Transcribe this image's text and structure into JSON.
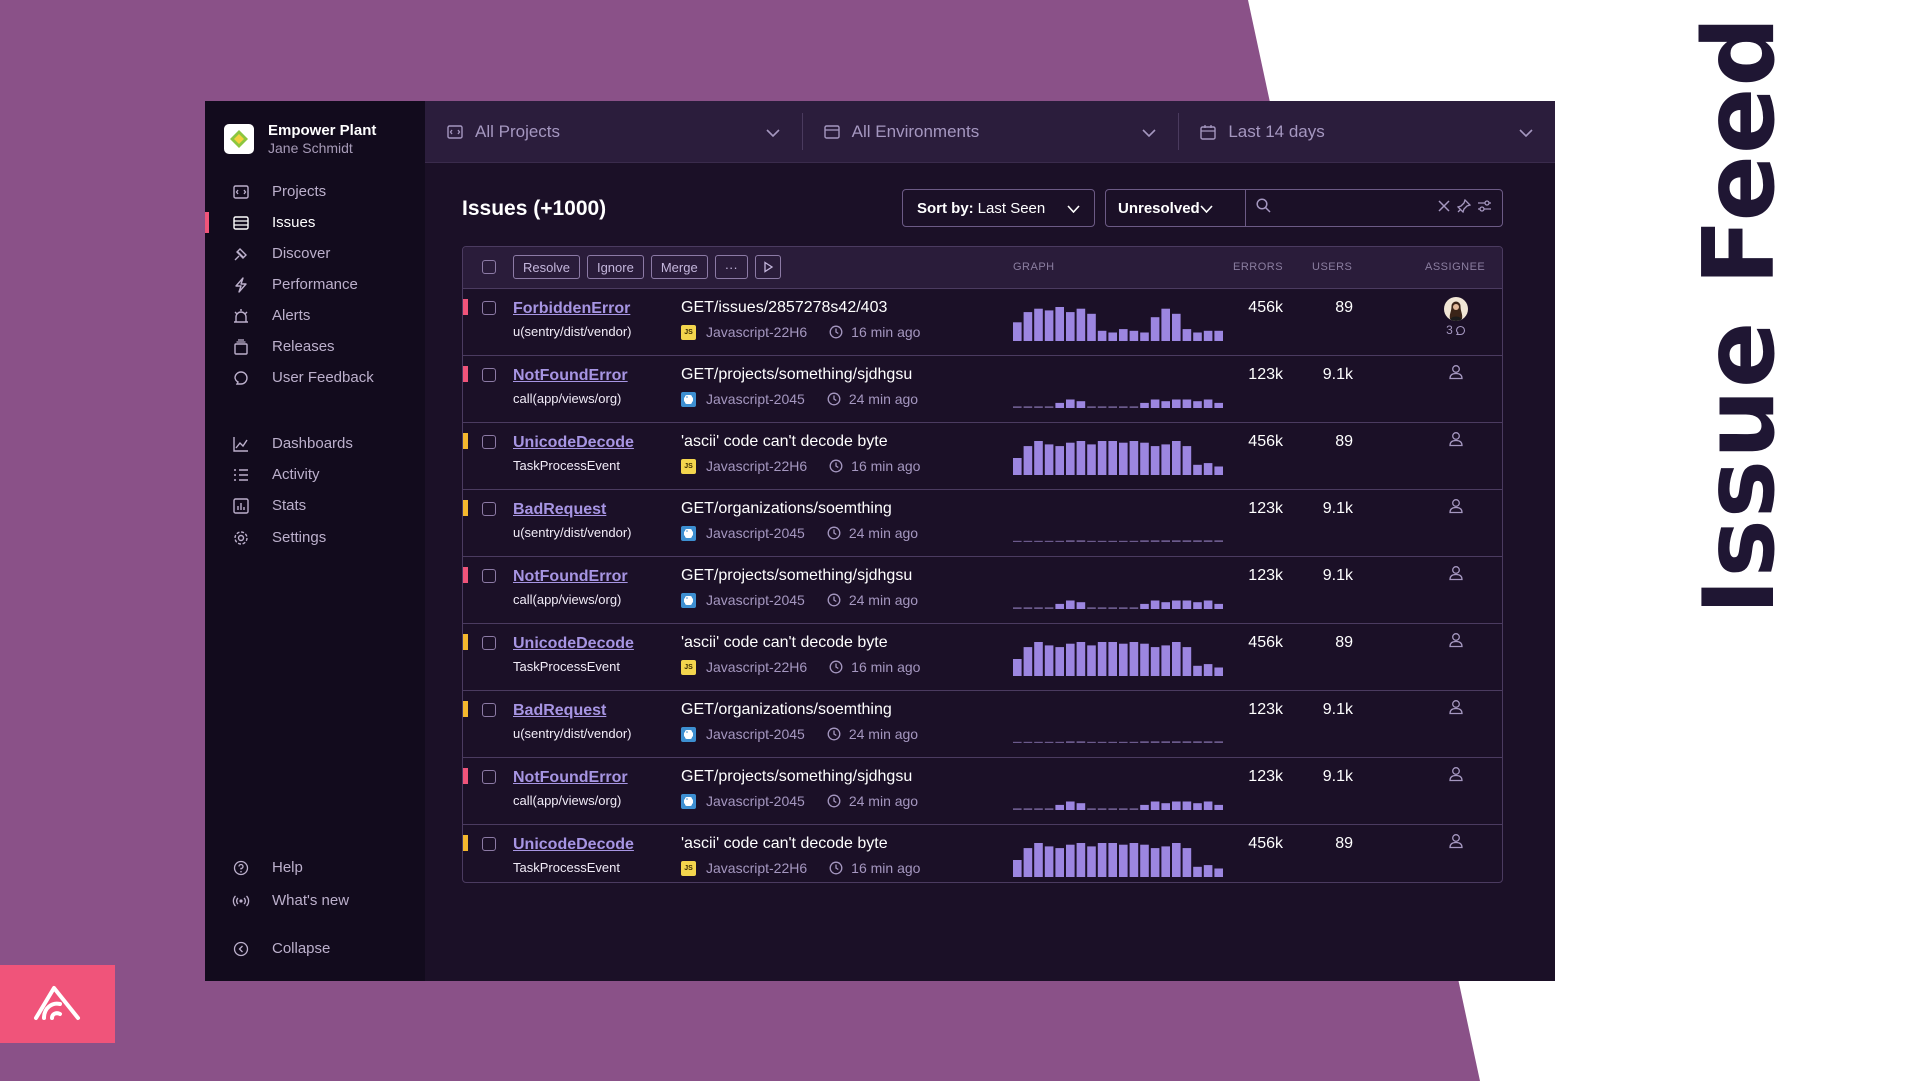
{
  "slide": {
    "title": "Issue Feed",
    "colors": {
      "background_purple": "#8a5188",
      "logo_pink": "#f0547a",
      "title_dark": "#1f1633"
    }
  },
  "sidebar": {
    "org_name": "Empower Plant",
    "user_name": "Jane Schmidt",
    "items": [
      {
        "label": "Projects",
        "icon": "projects-icon",
        "active": false
      },
      {
        "label": "Issues",
        "icon": "issues-icon",
        "active": true
      },
      {
        "label": "Discover",
        "icon": "discover-icon",
        "active": false
      },
      {
        "label": "Performance",
        "icon": "performance-icon",
        "active": false
      },
      {
        "label": "Alerts",
        "icon": "alerts-icon",
        "active": false
      },
      {
        "label": "Releases",
        "icon": "releases-icon",
        "active": false
      },
      {
        "label": "User Feedback",
        "icon": "user-feedback-icon",
        "active": false
      },
      {
        "label": "Dashboards",
        "icon": "dashboards-icon",
        "active": false
      },
      {
        "label": "Activity",
        "icon": "activity-icon",
        "active": false
      },
      {
        "label": "Stats",
        "icon": "stats-icon",
        "active": false
      },
      {
        "label": "Settings",
        "icon": "settings-icon",
        "active": false
      }
    ],
    "bottom_items": [
      {
        "label": "Help",
        "icon": "help-icon"
      },
      {
        "label": "What's new",
        "icon": "broadcast-icon"
      },
      {
        "label": "Collapse",
        "icon": "collapse-icon"
      }
    ]
  },
  "topbar": {
    "projects": "All Projects",
    "environments": "All Environments",
    "date_range": "Last 14 days"
  },
  "issues": {
    "title": "Issues (+1000)",
    "sort_prefix": "Sort by:",
    "sort_value": "Last Seen",
    "status": "Unresolved",
    "search_placeholder": "",
    "actions": {
      "resolve": "Resolve",
      "ignore": "Ignore",
      "merge": "Merge",
      "more": "···"
    },
    "columns": {
      "graph": "GRAPH",
      "errors": "ERRORS",
      "users": "USERS",
      "assignee": "ASSIGNEE"
    },
    "rows": [
      {
        "level": "error",
        "level_color": "#f0547a",
        "name": "ForbiddenError",
        "culprit": "u(sentry/dist/vendor)",
        "message": "GET/issues/2857278s42/403",
        "platform": "js",
        "project": "Javascript-22H6",
        "time": "16 min ago",
        "errors": "456k",
        "users": "89",
        "assignee": "avatar",
        "comments": "3",
        "trend": [
          0.55,
          0.85,
          0.95,
          0.9,
          1.0,
          0.85,
          0.95,
          0.8,
          0.3,
          0.25,
          0.35,
          0.3,
          0.25,
          0.7,
          0.95,
          0.8,
          0.35,
          0.25,
          0.3,
          0.3
        ]
      },
      {
        "level": "error",
        "level_color": "#f0547a",
        "name": "NotFoundError",
        "culprit": "call(app/views/org)",
        "message": "GET/projects/something/sjdhgsu",
        "platform": "py",
        "project": "Javascript-2045",
        "time": "24 min ago",
        "errors": "123k",
        "users": "9.1k",
        "assignee": "unassigned",
        "comments": "",
        "trend": [
          0.05,
          0.05,
          0.05,
          0.05,
          0.15,
          0.25,
          0.2,
          0.05,
          0.05,
          0.05,
          0.05,
          0.05,
          0.15,
          0.25,
          0.2,
          0.25,
          0.25,
          0.2,
          0.25,
          0.15
        ]
      },
      {
        "level": "warning",
        "level_color": "#f5b82e",
        "name": "UnicodeDecode",
        "culprit": "TaskProcessEvent",
        "message": "'ascii' code can't decode byte",
        "platform": "js",
        "project": "Javascript-22H6",
        "time": "16 min ago",
        "errors": "456k",
        "users": "89",
        "assignee": "unassigned",
        "comments": "",
        "trend": [
          0.5,
          0.85,
          1.0,
          0.9,
          0.85,
          0.95,
          1.0,
          0.9,
          1.0,
          1.0,
          0.95,
          1.0,
          0.95,
          0.85,
          0.9,
          1.0,
          0.85,
          0.3,
          0.35,
          0.25
        ]
      },
      {
        "level": "warning",
        "level_color": "#f5b82e",
        "name": "BadRequest",
        "culprit": "u(sentry/dist/vendor)",
        "message": "GET/organizations/soemthing",
        "platform": "py",
        "project": "Javascript-2045",
        "time": "24 min ago",
        "errors": "123k",
        "users": "9.1k",
        "assignee": "unassigned",
        "comments": "",
        "trend": [
          0.02,
          0.02,
          0.02,
          0.02,
          0.02,
          0.05,
          0.05,
          0.02,
          0.02,
          0.02,
          0.02,
          0.02,
          0.05,
          0.05,
          0.05,
          0.05,
          0.05,
          0.05,
          0.05,
          0.05
        ]
      },
      {
        "level": "error",
        "level_color": "#f0547a",
        "name": "NotFoundError",
        "culprit": "call(app/views/org)",
        "message": "GET/projects/something/sjdhgsu",
        "platform": "py",
        "project": "Javascript-2045",
        "time": "24 min ago",
        "errors": "123k",
        "users": "9.1k",
        "assignee": "unassigned",
        "comments": "",
        "trend": [
          0.05,
          0.05,
          0.05,
          0.05,
          0.15,
          0.25,
          0.2,
          0.05,
          0.05,
          0.05,
          0.05,
          0.05,
          0.15,
          0.25,
          0.2,
          0.25,
          0.25,
          0.2,
          0.25,
          0.15
        ]
      },
      {
        "level": "warning",
        "level_color": "#f5b82e",
        "name": "UnicodeDecode",
        "culprit": "TaskProcessEvent",
        "message": "'ascii' code can't decode byte",
        "platform": "js",
        "project": "Javascript-22H6",
        "time": "16 min ago",
        "errors": "456k",
        "users": "89",
        "assignee": "unassigned",
        "comments": "",
        "trend": [
          0.5,
          0.85,
          1.0,
          0.9,
          0.85,
          0.95,
          1.0,
          0.9,
          1.0,
          1.0,
          0.95,
          1.0,
          0.95,
          0.85,
          0.9,
          1.0,
          0.85,
          0.3,
          0.35,
          0.25
        ]
      },
      {
        "level": "warning",
        "level_color": "#f5b82e",
        "name": "BadRequest",
        "culprit": "u(sentry/dist/vendor)",
        "message": "GET/organizations/soemthing",
        "platform": "py",
        "project": "Javascript-2045",
        "time": "24 min ago",
        "errors": "123k",
        "users": "9.1k",
        "assignee": "unassigned",
        "comments": "",
        "trend": [
          0.02,
          0.02,
          0.02,
          0.02,
          0.02,
          0.05,
          0.05,
          0.02,
          0.02,
          0.02,
          0.02,
          0.02,
          0.05,
          0.05,
          0.05,
          0.05,
          0.05,
          0.05,
          0.05,
          0.05
        ]
      },
      {
        "level": "error",
        "level_color": "#f0547a",
        "name": "NotFoundError",
        "culprit": "call(app/views/org)",
        "message": "GET/projects/something/sjdhgsu",
        "platform": "py",
        "project": "Javascript-2045",
        "time": "24 min ago",
        "errors": "123k",
        "users": "9.1k",
        "assignee": "unassigned",
        "comments": "",
        "trend": [
          0.05,
          0.05,
          0.05,
          0.05,
          0.15,
          0.25,
          0.2,
          0.05,
          0.05,
          0.05,
          0.05,
          0.05,
          0.15,
          0.25,
          0.2,
          0.25,
          0.25,
          0.2,
          0.25,
          0.15
        ]
      },
      {
        "level": "warning",
        "level_color": "#f5b82e",
        "name": "UnicodeDecode",
        "culprit": "TaskProcessEvent",
        "message": "'ascii' code can't decode byte",
        "platform": "js",
        "project": "Javascript-22H6",
        "time": "16 min ago",
        "errors": "456k",
        "users": "89",
        "assignee": "unassigned",
        "comments": "",
        "trend": [
          0.5,
          0.85,
          1.0,
          0.9,
          0.85,
          0.95,
          1.0,
          0.9,
          1.0,
          1.0,
          0.95,
          1.0,
          0.95,
          0.85,
          0.9,
          1.0,
          0.85,
          0.3,
          0.35,
          0.25
        ]
      }
    ]
  }
}
